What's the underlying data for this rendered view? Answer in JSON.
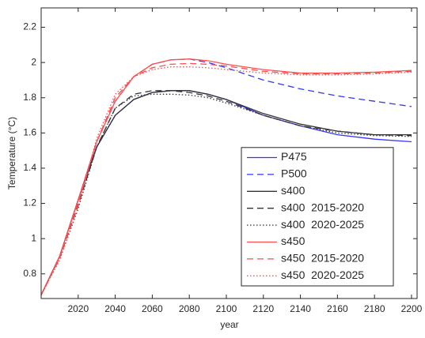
{
  "chart_data": {
    "type": "line",
    "xlabel": "year",
    "ylabel": "Temperature (°C)",
    "xlim": [
      2000,
      2203
    ],
    "ylim": [
      0.66,
      2.31
    ],
    "xticks": [
      2020,
      2040,
      2060,
      2080,
      2100,
      2120,
      2140,
      2160,
      2180,
      2200
    ],
    "yticks": [
      0.8,
      1,
      1.2,
      1.4,
      1.6,
      1.8,
      2,
      2.2
    ],
    "legend": "lower-right",
    "x": [
      2000,
      2010,
      2020,
      2030,
      2040,
      2050,
      2060,
      2070,
      2080,
      2090,
      2100,
      2120,
      2140,
      2160,
      2180,
      2200
    ],
    "series": [
      {
        "name": "P475",
        "color": "#3333ff",
        "style": "solid",
        "values": [
          0.68,
          0.9,
          1.22,
          1.52,
          1.7,
          1.79,
          1.83,
          1.84,
          1.84,
          1.82,
          1.79,
          1.7,
          1.64,
          1.59,
          1.565,
          1.55
        ]
      },
      {
        "name": "P500",
        "color": "#3333ff",
        "style": "dashed",
        "values": [
          0.68,
          0.9,
          1.22,
          1.55,
          1.78,
          1.92,
          1.99,
          2.015,
          2.02,
          2.0,
          1.97,
          1.9,
          1.85,
          1.81,
          1.78,
          1.75
        ]
      },
      {
        "name": "s400",
        "color": "#333333",
        "style": "solid",
        "values": [
          0.68,
          0.9,
          1.22,
          1.52,
          1.7,
          1.79,
          1.83,
          1.84,
          1.84,
          1.82,
          1.79,
          1.71,
          1.65,
          1.61,
          1.59,
          1.59
        ]
      },
      {
        "name": "s400  2015-2020",
        "color": "#333333",
        "style": "dashed",
        "values": [
          0.68,
          0.89,
          1.19,
          1.52,
          1.74,
          1.82,
          1.84,
          1.84,
          1.83,
          1.81,
          1.78,
          1.7,
          1.64,
          1.61,
          1.59,
          1.585
        ]
      },
      {
        "name": "s400  2020-2025",
        "color": "#333333",
        "style": "dotted",
        "values": [
          0.68,
          0.88,
          1.17,
          1.52,
          1.74,
          1.81,
          1.82,
          1.82,
          1.815,
          1.8,
          1.77,
          1.7,
          1.64,
          1.6,
          1.585,
          1.58
        ]
      },
      {
        "name": "s450",
        "color": "#ff4d4d",
        "style": "solid",
        "values": [
          0.68,
          0.9,
          1.22,
          1.55,
          1.78,
          1.92,
          1.99,
          2.015,
          2.02,
          2.01,
          1.99,
          1.96,
          1.94,
          1.94,
          1.945,
          1.955
        ]
      },
      {
        "name": "s450  2015-2020",
        "color": "#ff4d4d",
        "style": "dashed",
        "values": [
          0.68,
          0.89,
          1.2,
          1.55,
          1.8,
          1.92,
          1.97,
          1.99,
          1.995,
          1.99,
          1.98,
          1.95,
          1.935,
          1.935,
          1.94,
          1.95
        ]
      },
      {
        "name": "s450  2020-2025",
        "color": "#ff4d4d",
        "style": "dotted",
        "values": [
          0.68,
          0.88,
          1.18,
          1.57,
          1.82,
          1.92,
          1.96,
          1.975,
          1.975,
          1.97,
          1.96,
          1.94,
          1.93,
          1.93,
          1.935,
          1.945
        ]
      }
    ]
  }
}
